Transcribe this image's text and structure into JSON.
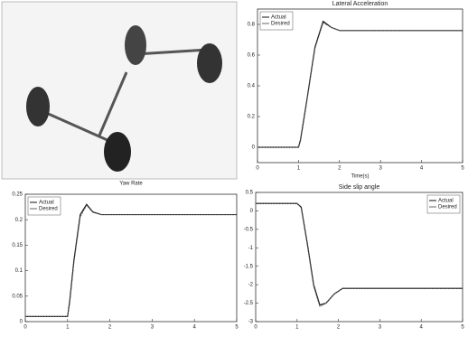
{
  "figure": {
    "caption": "Yaw Rate"
  },
  "chart_data": [
    {
      "type": "line",
      "title": "Lateral Acceleration",
      "x_label": "Time(s)",
      "x": [
        0,
        1,
        1.05,
        1.2,
        1.4,
        1.6,
        1.8,
        2.0,
        2.5,
        3,
        4,
        5
      ],
      "series": [
        {
          "name": "Actual",
          "color": "#111111",
          "values": [
            0,
            0,
            0.05,
            0.3,
            0.65,
            0.82,
            0.78,
            0.76,
            0.76,
            0.76,
            0.76,
            0.76
          ]
        },
        {
          "name": "Desired",
          "color": "#666666",
          "values": [
            0,
            0,
            0.04,
            0.29,
            0.64,
            0.81,
            0.78,
            0.76,
            0.76,
            0.76,
            0.76,
            0.76
          ]
        }
      ],
      "xlim": [
        0,
        5
      ],
      "ylim": [
        -0.1,
        0.9
      ],
      "xticks": [
        0,
        1,
        2,
        3,
        4,
        5
      ],
      "yticks": [
        0,
        0.2,
        0.4,
        0.6,
        0.8
      ],
      "legend": "upper left"
    },
    {
      "type": "line",
      "x": [
        0,
        1,
        1.05,
        1.15,
        1.3,
        1.45,
        1.6,
        1.8,
        2.0,
        2.5,
        3,
        4,
        5
      ],
      "series": [
        {
          "name": "Actual",
          "color": "#111111",
          "values": [
            0.01,
            0.01,
            0.04,
            0.12,
            0.21,
            0.23,
            0.215,
            0.21,
            0.21,
            0.21,
            0.21,
            0.21,
            0.21
          ]
        },
        {
          "name": "Desired",
          "color": "#666666",
          "values": [
            0.01,
            0.01,
            0.035,
            0.115,
            0.205,
            0.228,
            0.214,
            0.21,
            0.21,
            0.21,
            0.21,
            0.21,
            0.21
          ]
        }
      ],
      "xlim": [
        0,
        5
      ],
      "ylim": [
        0,
        0.25
      ],
      "xticks": [
        0,
        1,
        2,
        3,
        4,
        5
      ],
      "yticks": [
        0,
        0.05,
        0.1,
        0.15,
        0.2,
        0.25
      ],
      "legend": "upper left"
    },
    {
      "type": "line",
      "title": "Side slip angle",
      "x": [
        0,
        1,
        1.1,
        1.25,
        1.4,
        1.55,
        1.7,
        1.9,
        2.1,
        2.5,
        3,
        4,
        5
      ],
      "series": [
        {
          "name": "Actual",
          "color": "#111111",
          "values": [
            0.2,
            0.2,
            0.1,
            -0.9,
            -2.0,
            -2.55,
            -2.5,
            -2.25,
            -2.1,
            -2.1,
            -2.1,
            -2.1,
            -2.1
          ]
        },
        {
          "name": "Desired",
          "color": "#666666",
          "values": [
            0.2,
            0.2,
            0.08,
            -0.95,
            -2.05,
            -2.6,
            -2.5,
            -2.25,
            -2.1,
            -2.1,
            -2.1,
            -2.1,
            -2.1
          ]
        }
      ],
      "xlim": [
        0,
        5
      ],
      "ylim": [
        -3,
        0.5
      ],
      "xticks": [
        0,
        1,
        2,
        3,
        4,
        5
      ],
      "yticks": [
        -3,
        -2.5,
        -2,
        -1.5,
        -1,
        -0.5,
        0,
        0.5
      ],
      "legend": "upper right"
    }
  ]
}
